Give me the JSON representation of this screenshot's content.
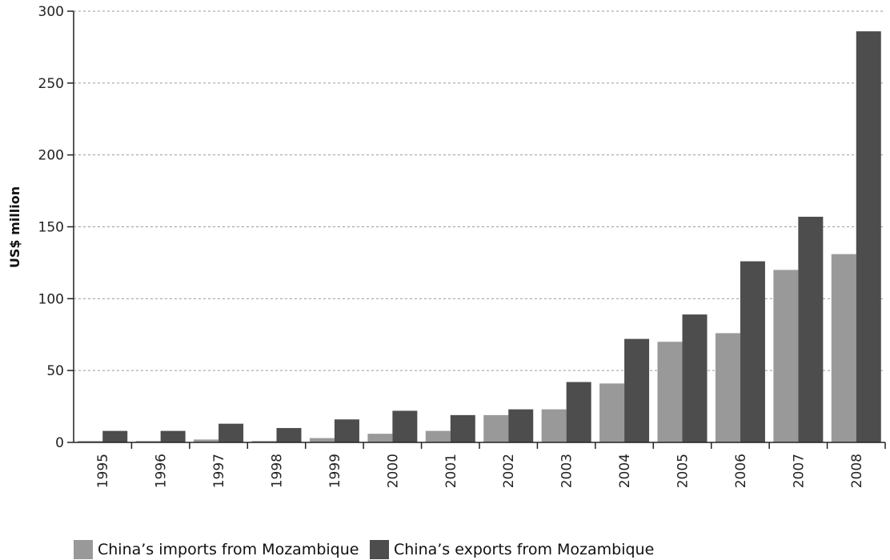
{
  "chart_data": {
    "type": "bar",
    "title": "",
    "xlabel": "",
    "ylabel": "US$ million",
    "ylim": [
      0,
      300
    ],
    "yticks": [
      0,
      50,
      100,
      150,
      200,
      250,
      300
    ],
    "grid": true,
    "legend_position": "bottom",
    "categories": [
      "1995",
      "1996",
      "1997",
      "1998",
      "1999",
      "2000",
      "2001",
      "2002",
      "2003",
      "2004",
      "2005",
      "2006",
      "2007",
      "2008"
    ],
    "series": [
      {
        "name": "China’s imports from Mozambique",
        "color": "#999999",
        "values": [
          1,
          1,
          2,
          1,
          3,
          6,
          8,
          19,
          23,
          41,
          70,
          76,
          120,
          131
        ]
      },
      {
        "name": "China’s exports from Mozambique",
        "color": "#4d4d4d",
        "values": [
          8,
          8,
          13,
          10,
          16,
          22,
          19,
          23,
          42,
          72,
          89,
          126,
          157,
          286
        ]
      }
    ]
  }
}
